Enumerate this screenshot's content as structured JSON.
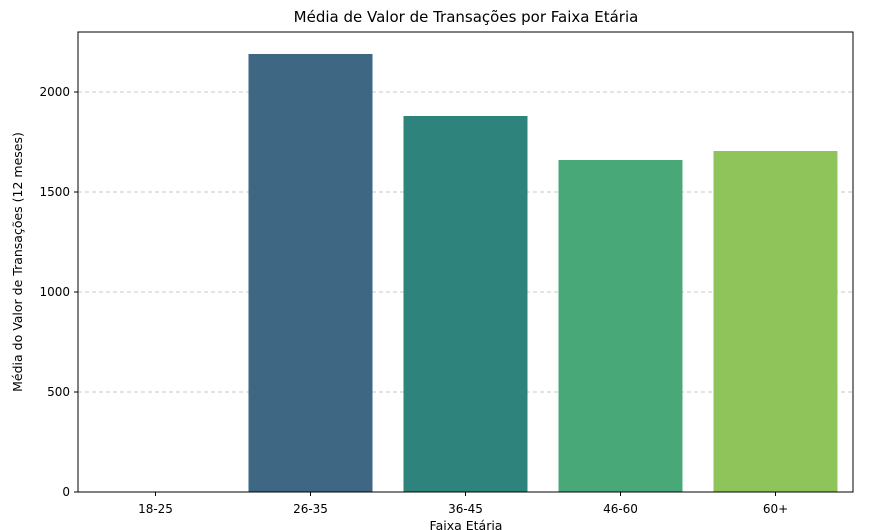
{
  "chart_data": {
    "type": "bar",
    "title": "Média de Valor de Transações por Faixa Etária",
    "xlabel": "Faixa Etária",
    "ylabel": "Média do Valor de Transações (12 meses)",
    "categories": [
      "18-25",
      "26-35",
      "36-45",
      "46-60",
      "60+"
    ],
    "values": [
      0,
      2190,
      1880,
      1660,
      1705
    ],
    "colors": [
      "#472c7a",
      "#3e6783",
      "#2e837c",
      "#48a878",
      "#8fc45a"
    ],
    "ylim": [
      0,
      2300
    ],
    "yticks": [
      0,
      500,
      1000,
      1500,
      2000
    ],
    "grid": "y-dashed",
    "legend": "none"
  }
}
